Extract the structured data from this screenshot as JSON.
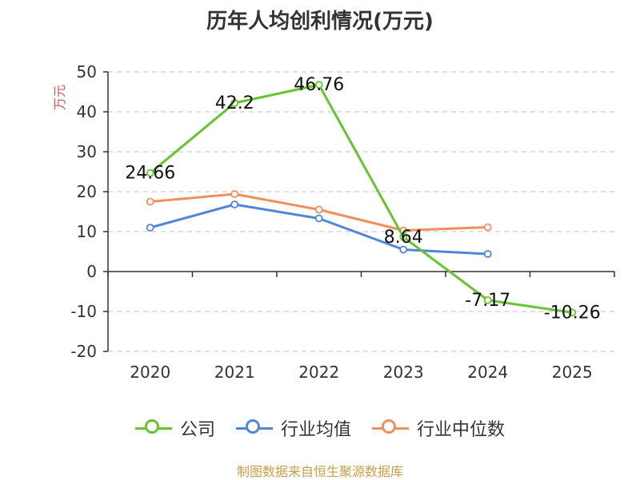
{
  "title": "历年人均创利情况(万元)",
  "source": "制图数据来自恒生聚源数据库",
  "colors": {
    "company": "#66c42c",
    "industry_avg": "#4f86d9",
    "industry_median": "#f28e5a",
    "grid": "#cccccc",
    "axis": "#333333",
    "ylabel": "#d9534f"
  },
  "chart_data": {
    "type": "line",
    "categories": [
      "2020",
      "2021",
      "2022",
      "2023",
      "2024",
      "2025"
    ],
    "ylabel": "万元",
    "xlabel": "",
    "ylim": [
      -20,
      50
    ],
    "yticks": [
      50,
      40,
      30,
      20,
      10,
      0,
      -10,
      -20
    ],
    "grid": true,
    "legend_position": "bottom",
    "series": [
      {
        "key": "company",
        "name": "公司",
        "values": [
          24.66,
          42.2,
          46.76,
          8.64,
          -7.17,
          -10.26
        ],
        "labels": [
          "24.66",
          "42.2",
          "46.76",
          "8.64",
          "-7.17",
          "-10.26"
        ]
      },
      {
        "key": "industry_avg",
        "name": "行业均值",
        "values": [
          11.0,
          16.8,
          13.3,
          5.5,
          4.4,
          null
        ]
      },
      {
        "key": "industry_median",
        "name": "行业中位数",
        "values": [
          17.5,
          19.4,
          15.5,
          10.3,
          11.1,
          null
        ]
      }
    ]
  }
}
